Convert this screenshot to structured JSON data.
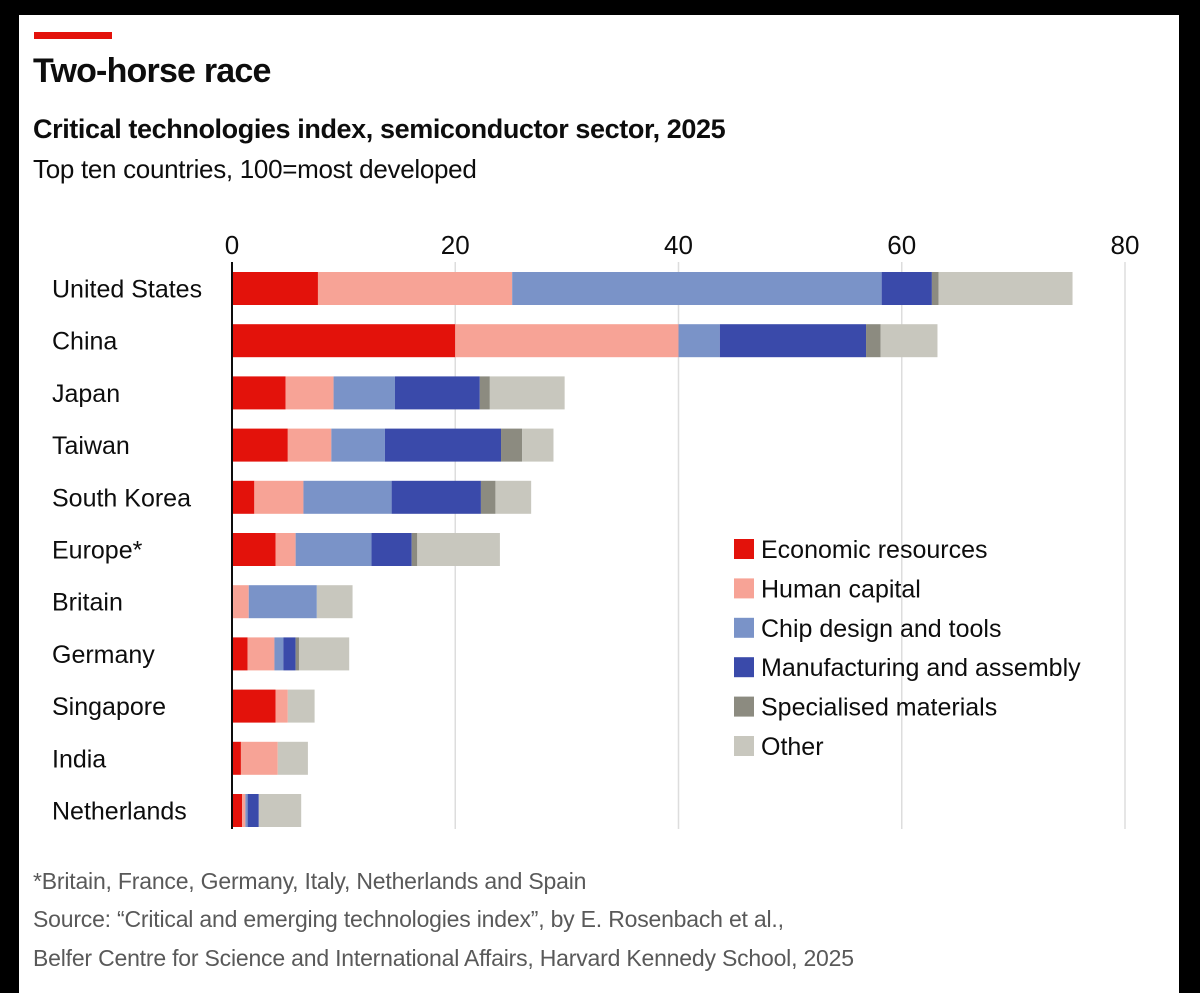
{
  "header": {
    "title": "Two-horse race",
    "subtitle": "Critical technologies index, semiconductor sector, 2025",
    "subsubtitle": "Top ten countries, 100=most developed"
  },
  "colors": {
    "accent": "#e3120b",
    "economic_resources": "#e3120b",
    "human_capital": "#f7a396",
    "chip_design": "#7a93c8",
    "manufacturing": "#3a4aaa",
    "specialised_materials": "#8c8b80",
    "other": "#c8c7be",
    "gridline": "#dddddd",
    "axis": "#0d0d0d"
  },
  "footer": {
    "note": "*Britain, France, Germany, Italy, Netherlands and Spain",
    "source_line1": "Source: “Critical and emerging technologies index”, by E. Rosenbach et al.,",
    "source_line2": "Belfer Centre for Science and International Affairs, Harvard Kennedy School, 2025"
  },
  "chart_data": {
    "type": "bar",
    "orientation": "horizontal",
    "stacked": true,
    "title": "Two-horse race",
    "subtitle": "Critical technologies index, semiconductor sector, 2025",
    "xlabel": "",
    "ylabel": "",
    "xlim": [
      0,
      80
    ],
    "xticks": [
      0,
      20,
      40,
      60,
      80
    ],
    "xtick_labels": [
      "0",
      "20",
      "40",
      "60",
      "80"
    ],
    "grid": true,
    "legend_position": "right",
    "categories": [
      "United States",
      "China",
      "Japan",
      "Taiwan",
      "South Korea",
      "Europe*",
      "Britain",
      "Germany",
      "Singapore",
      "India",
      "Netherlands"
    ],
    "series": [
      {
        "name": "Economic resources",
        "color_key": "economic_resources",
        "values": [
          7.7,
          20.0,
          4.8,
          5.0,
          2.0,
          3.9,
          0.1,
          1.4,
          3.9,
          0.8,
          0.9
        ]
      },
      {
        "name": "Human capital",
        "color_key": "human_capital",
        "values": [
          17.4,
          20.0,
          4.3,
          3.9,
          4.4,
          1.8,
          1.4,
          2.4,
          1.1,
          3.3,
          0.3
        ]
      },
      {
        "name": "Chip design and tools",
        "color_key": "chip_design",
        "values": [
          33.1,
          3.7,
          5.5,
          4.8,
          7.9,
          6.8,
          6.1,
          0.8,
          0.0,
          0.0,
          0.2
        ]
      },
      {
        "name": "Manufacturing and assembly",
        "color_key": "manufacturing",
        "values": [
          4.5,
          13.1,
          7.6,
          10.4,
          8.0,
          3.6,
          0.0,
          1.1,
          0.0,
          0.0,
          1.0
        ]
      },
      {
        "name": "Specialised materials",
        "color_key": "specialised_materials",
        "values": [
          0.6,
          1.3,
          0.9,
          1.9,
          1.3,
          0.5,
          0.0,
          0.3,
          0.0,
          0.0,
          0.0
        ]
      },
      {
        "name": "Other",
        "color_key": "other",
        "values": [
          12.0,
          5.1,
          6.7,
          2.8,
          3.2,
          7.4,
          3.2,
          4.5,
          2.4,
          2.7,
          3.8
        ]
      }
    ]
  }
}
